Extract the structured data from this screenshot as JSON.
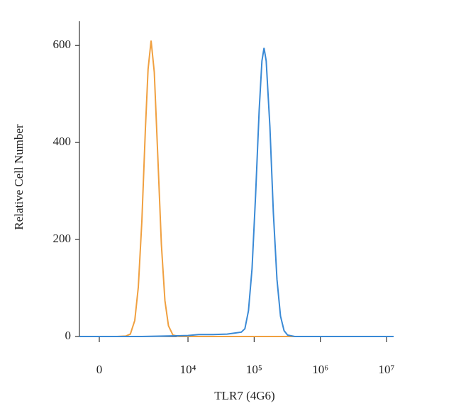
{
  "chart_data": {
    "type": "line",
    "x_label": "TLR7 (4G6)",
    "y_label": "Relative Cell Number",
    "xscale": "biexponential",
    "xlim": [
      -2240,
      12800000
    ],
    "ylim": [
      0,
      650
    ],
    "xticks": [
      0,
      {
        "value": 10000,
        "label": "10⁴"
      },
      {
        "value": 100000,
        "label": "10⁵"
      },
      {
        "value": 1000000,
        "label": "10⁶"
      },
      {
        "value": 10000000,
        "label": "10⁷"
      }
    ],
    "yticks": [
      0,
      200,
      400,
      600
    ],
    "series": [
      {
        "color": "#f0a040",
        "x": [
          -2240,
          0,
          2000,
          3000,
          3500,
          4000,
          4400,
          4800,
          5200,
          5500,
          5840,
          6200,
          6600,
          7000,
          7400,
          7800,
          8300,
          9000,
          12000,
          100000,
          1000000,
          12800000
        ],
        "values": [
          0,
          0,
          0,
          1,
          5,
          33,
          102,
          238,
          429,
          551,
          610,
          545,
          370,
          190,
          74,
          22,
          3,
          0,
          0,
          0,
          0,
          0
        ]
      },
      {
        "color": "#3a8ad6",
        "x": [
          -2240,
          0,
          4800,
          10000,
          14500,
          23800,
          39000,
          50000,
          64000,
          72400,
          82000,
          92900,
          105000,
          119000,
          131000,
          141000,
          152000,
          173000,
          195000,
          221000,
          250000,
          283000,
          320000,
          410000,
          975000,
          12800000
        ],
        "values": [
          0,
          0,
          0,
          2,
          4,
          4,
          5,
          7,
          9,
          16,
          53,
          140,
          290,
          466,
          568,
          595,
          568,
          432,
          255,
          118,
          42,
          12,
          3,
          0,
          0,
          0
        ]
      }
    ]
  }
}
